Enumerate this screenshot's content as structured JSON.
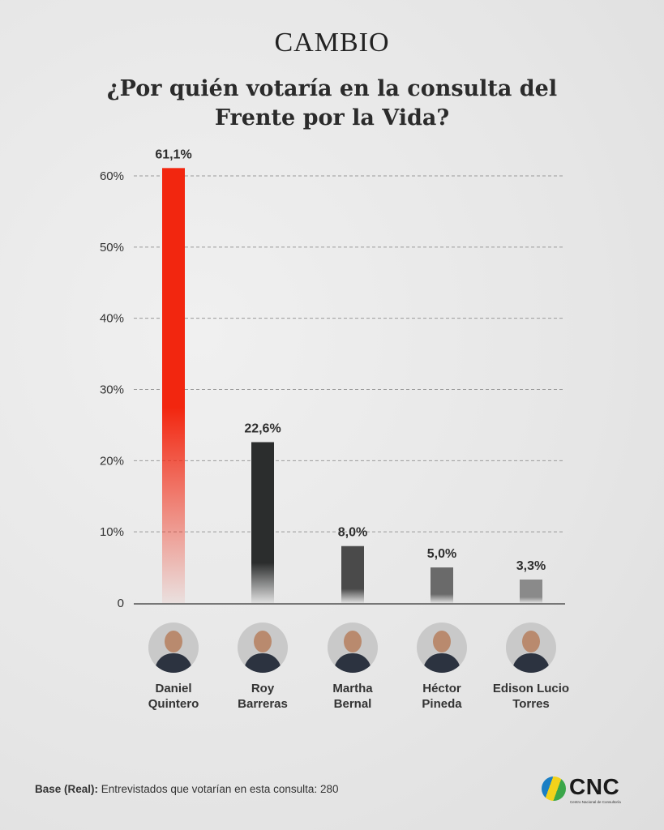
{
  "brand": "CAMBIO",
  "title_line1": "¿Por quién votaría en la consulta del",
  "title_line2": "Frente por la Vida?",
  "chart_data": {
    "type": "bar",
    "categories": [
      "Daniel Quintero",
      "Roy Barreras",
      "Martha Bernal",
      "Héctor Pineda",
      "Edison Lucio Torres"
    ],
    "values": [
      61.1,
      22.6,
      8.0,
      5.0,
      3.3
    ],
    "value_labels": [
      "61,1%",
      "22,6%",
      "8,0%",
      "5,0%",
      "3,3%"
    ],
    "ylim": [
      0,
      60
    ],
    "yticks": [
      0,
      10,
      20,
      30,
      40,
      50,
      60
    ],
    "ytick_labels": [
      "0",
      "10%",
      "20%",
      "30%",
      "40%",
      "50%",
      "60%"
    ],
    "grid": "dashed horizontal",
    "colors": [
      "#f2260f",
      "#2b2d2d",
      "#4a4a4a",
      "#6a6a6a",
      "#8a8a8a"
    ],
    "highlight_label_color": "#e8220e"
  },
  "candidates": [
    {
      "line1": "Daniel",
      "line2": "Quintero"
    },
    {
      "line1": "Roy",
      "line2": "Barreras"
    },
    {
      "line1": "Martha",
      "line2": "Bernal"
    },
    {
      "line1": "Héctor",
      "line2": "Pineda"
    },
    {
      "line1": "Edison Lucio",
      "line2": "Torres"
    }
  ],
  "footer": {
    "base_label": "Base (Real):",
    "base_text": " Entrevistados que votarían en esta consulta: 280"
  },
  "source_logo": {
    "text": "CNC",
    "subtitle": "Centro Nacional de Consultoría"
  }
}
